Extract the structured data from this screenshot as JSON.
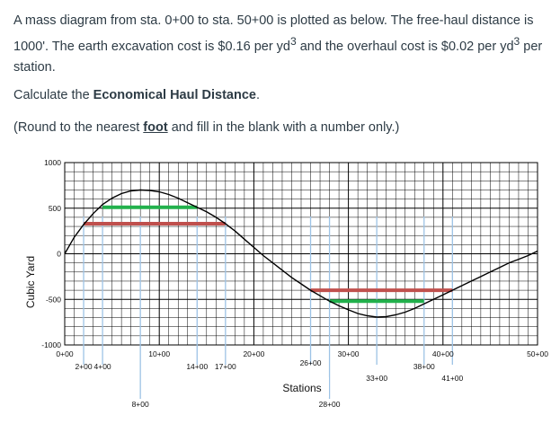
{
  "question": {
    "line1_a": "A mass diagram from sta. 0+00 to sta. 50+00 is plotted as below.  The free-haul distance is 1000'.  The earth excavation cost is $0.16 per yd",
    "sup3": "3",
    "line1_b": " and the overhaul cost is $0.02 per yd",
    "line1_c": " per station.",
    "calc_prefix": "Calculate the ",
    "calc_bold": "Economical Haul Distance",
    "calc_suffix": ".",
    "round_prefix": "(Round to the nearest ",
    "round_bold": "foot",
    "round_suffix": " and fill in the blank with a number only.)"
  },
  "colors": {
    "text": "#2d3b45",
    "grid": "#000000",
    "curve": "#000000",
    "green_line": "#22b14c",
    "red_line": "#c0504d",
    "drop_line": "#9dc3e6"
  },
  "chart_data": {
    "type": "line",
    "ylabel": "Cubic Yard",
    "xlabel": "Stations",
    "ylim": [
      -1000,
      1000
    ],
    "xlim": [
      0,
      50
    ],
    "y_ticks": [
      {
        "value": 1000,
        "label": "1000"
      },
      {
        "value": 500,
        "label": "500"
      },
      {
        "value": 0,
        "label": "0"
      },
      {
        "value": -500,
        "label": "-500"
      },
      {
        "value": -1000,
        "label": "-1000"
      }
    ],
    "x_ticks": [
      {
        "value": 0,
        "label": "0+00",
        "row": 0
      },
      {
        "value": 2,
        "label": "2+00",
        "row": 1
      },
      {
        "value": 4,
        "label": "4+00",
        "row": 1
      },
      {
        "value": 8,
        "label": "8+00",
        "row": 3
      },
      {
        "value": 10,
        "label": "10+00",
        "row": 0
      },
      {
        "value": 14,
        "label": "14+00",
        "row": 1
      },
      {
        "value": 17,
        "label": "17+00",
        "row": 1
      },
      {
        "value": 20,
        "label": "20+00",
        "row": 0
      },
      {
        "value": 26,
        "label": "26+00",
        "row": "0b"
      },
      {
        "value": 28,
        "label": "28+00",
        "row": 3
      },
      {
        "value": 30,
        "label": "30+00",
        "row": 0
      },
      {
        "value": 33,
        "label": "33+00",
        "row": 2
      },
      {
        "value": 38,
        "label": "38+00",
        "row": 1
      },
      {
        "value": 40,
        "label": "40+00",
        "row": 0
      },
      {
        "value": 41,
        "label": "41+00",
        "row": 2
      },
      {
        "value": 50,
        "label": "50+00",
        "row": 0
      }
    ],
    "curve": {
      "x": [
        0,
        1,
        2,
        3,
        4,
        5,
        6,
        7,
        8,
        9,
        10,
        11,
        12,
        13,
        14,
        15,
        16,
        17,
        18,
        19,
        20,
        21,
        22,
        23,
        24,
        25,
        26,
        27,
        28,
        29,
        30,
        31,
        32,
        33,
        34,
        35,
        36,
        37,
        38,
        39,
        40,
        41,
        42,
        43,
        44,
        45,
        46,
        47,
        48,
        49,
        50
      ],
      "y": [
        0,
        180,
        320,
        440,
        540,
        610,
        660,
        690,
        700,
        695,
        680,
        650,
        610,
        560,
        510,
        460,
        400,
        330,
        250,
        160,
        70,
        -20,
        -100,
        -180,
        -260,
        -330,
        -400,
        -460,
        -520,
        -570,
        -615,
        -655,
        -680,
        -695,
        -690,
        -670,
        -640,
        -600,
        -550,
        -500,
        -450,
        -400,
        -350,
        -300,
        -250,
        -200,
        -150,
        -100,
        -60,
        -20,
        30
      ]
    },
    "horizontal_lines": [
      {
        "name": "green-upper",
        "color": "green",
        "x_start": 4,
        "x_end": 14,
        "y": 510
      },
      {
        "name": "red-upper",
        "color": "red",
        "x_start": 2,
        "x_end": 17,
        "y": 330
      },
      {
        "name": "red-lower",
        "color": "red",
        "x_start": 26,
        "x_end": 41,
        "y": -400
      },
      {
        "name": "green-lower",
        "color": "green",
        "x_start": 28,
        "x_end": 38,
        "y": -520
      }
    ],
    "drop_lines": [
      2,
      4,
      8,
      14,
      17,
      26,
      28,
      33,
      38,
      41
    ]
  }
}
